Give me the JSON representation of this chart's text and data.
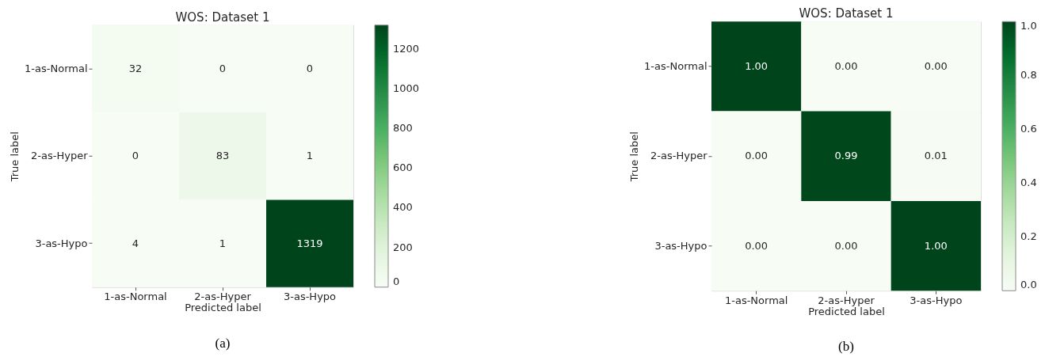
{
  "chart_data": [
    {
      "type": "heatmap",
      "title": "WOS: Dataset 1",
      "xlabel": "Predicted label",
      "ylabel": "True label",
      "categories": [
        "1-as-Normal",
        "2-as-Hyper",
        "3-as-Hypo"
      ],
      "y_categories": [
        "1-as-Normal",
        "2-as-Hyper",
        "3-as-Hypo"
      ],
      "cells": [
        [
          32,
          0,
          0
        ],
        [
          0,
          83,
          1
        ],
        [
          4,
          1,
          1319
        ]
      ],
      "data_labels": true,
      "clim": [
        0,
        1319
      ],
      "cticks": [
        0,
        200,
        400,
        600,
        800,
        1000,
        1200
      ],
      "annotations": [
        "(a)"
      ]
    },
    {
      "type": "heatmap",
      "title": "WOS: Dataset 1",
      "xlabel": "Predicted label",
      "ylabel": "True label",
      "categories": [
        "1-as-Normal",
        "2-as-Hyper",
        "3-as-Hypo"
      ],
      "y_categories": [
        "1-as-Normal",
        "2-as-Hyper",
        "3-as-Hypo"
      ],
      "cells": [
        [
          1.0,
          0.0,
          0.0
        ],
        [
          0.0,
          0.99,
          0.01
        ],
        [
          0.0,
          0.0,
          1.0
        ]
      ],
      "cell_labels": [
        [
          "1.00",
          "0.00",
          "0.00"
        ],
        [
          "0.00",
          "0.99",
          "0.01"
        ],
        [
          "0.00",
          "0.00",
          "1.00"
        ]
      ],
      "clim": [
        0,
        1
      ],
      "cticks": [
        {
          "value": 0,
          "label": "0.0"
        },
        0.2,
        0.4,
        0.6,
        0.8,
        {
          "value": 1,
          "label": "1.0"
        }
      ],
      "annotations": [
        "(b)"
      ]
    }
  ]
}
